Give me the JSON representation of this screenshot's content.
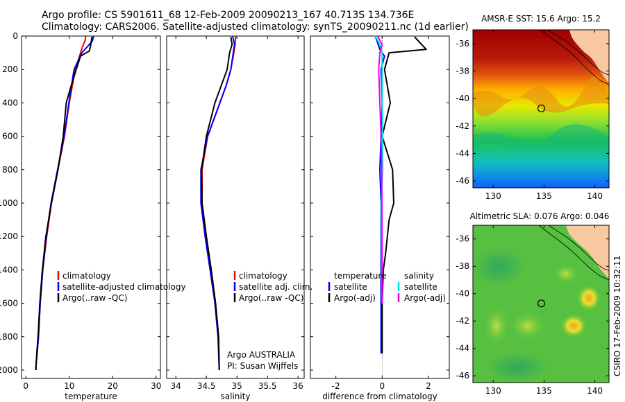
{
  "header": {
    "line1": "Argo profile: CS 5901611_68 12-Feb-2009 20090213_167 40.713S 134.736E",
    "line2": "Climatology: CARS2006. Satellite-adjusted climatology: synTS_20090211.nc (1d earlier)"
  },
  "side_label": "CSIRO 17-Feb-2009 10:32:11",
  "chart_data": [
    {
      "type": "line",
      "panel": "temperature",
      "xlabel": "temperature",
      "ylabel": "",
      "xlim": [
        -1,
        31
      ],
      "ylim": [
        2050,
        0
      ],
      "xticks": [
        0,
        10,
        20,
        30
      ],
      "yticks": [
        0,
        200,
        400,
        600,
        800,
        1000,
        1200,
        1400,
        1600,
        1800,
        2000
      ],
      "legend": [
        "climatology",
        "satellite-adjusted climatology",
        "Argo(..raw -QC)"
      ],
      "series": [
        {
          "name": "climatology",
          "color": "#ff0000",
          "x": [
            13.8,
            13.6,
            13.1,
            12.6,
            11.4,
            10.7,
            10.0,
            8.9,
            7.4,
            5.9,
            4.8,
            3.9,
            3.3,
            2.9,
            2.6,
            2.4,
            2.3
          ],
          "y": [
            0,
            30,
            60,
            100,
            200,
            300,
            400,
            600,
            800,
            1000,
            1200,
            1400,
            1600,
            1800,
            1900,
            1950,
            2000
          ]
        },
        {
          "name": "satellite-adjusted climatology",
          "color": "#0000ff",
          "x": [
            15.6,
            15.3,
            14.3,
            12.9,
            11.1,
            10.5,
            9.9,
            8.8,
            7.3,
            5.8,
            4.7,
            3.9,
            3.3,
            2.9,
            2.6,
            2.4,
            2.3
          ],
          "y": [
            0,
            30,
            60,
            100,
            200,
            300,
            400,
            600,
            800,
            1000,
            1200,
            1400,
            1600,
            1800,
            1900,
            1950,
            2000
          ]
        },
        {
          "name": "Argo(..raw -QC)",
          "color": "#000000",
          "x": [
            15.2,
            15.1,
            14.9,
            14.6,
            12.6,
            11.6,
            10.4,
            9.3,
            8.6,
            7.4,
            5.9,
            4.6,
            3.8,
            3.2,
            2.8,
            2.5,
            2.3
          ],
          "y": [
            5,
            30,
            60,
            90,
            120,
            200,
            300,
            400,
            600,
            800,
            1000,
            1200,
            1400,
            1600,
            1800,
            1900,
            2000
          ]
        }
      ]
    },
    {
      "type": "line",
      "panel": "salinity",
      "xlabel": "salinity",
      "ylabel": "",
      "xlim": [
        33.85,
        36.1
      ],
      "ylim": [
        2050,
        0
      ],
      "xticks": [
        34,
        34.5,
        35,
        35.5,
        36
      ],
      "legend": [
        "climatology",
        "satellite adj. clim.",
        "Argo(..raw -QC)"
      ],
      "annotation": [
        "Argo AUSTRALIA",
        "PI: Susan Wijffels"
      ],
      "series": [
        {
          "name": "climatology",
          "color": "#ff0000",
          "x": [
            34.98,
            34.97,
            34.95,
            34.9,
            34.82,
            34.72,
            34.52,
            34.43,
            34.43,
            34.5,
            34.58,
            34.65,
            34.7,
            34.71
          ],
          "y": [
            0,
            50,
            100,
            200,
            300,
            400,
            600,
            800,
            1000,
            1200,
            1400,
            1600,
            1800,
            2000
          ]
        },
        {
          "name": "satellite adj. clim.",
          "color": "#0000ff",
          "x": [
            34.93,
            34.96,
            34.94,
            34.9,
            34.82,
            34.72,
            34.52,
            34.41,
            34.41,
            34.48,
            34.56,
            34.64,
            34.69,
            34.71
          ],
          "y": [
            0,
            50,
            100,
            200,
            300,
            400,
            600,
            800,
            1000,
            1200,
            1400,
            1600,
            1800,
            2000
          ]
        },
        {
          "name": "Argo(..raw -QC)",
          "color": "#000000",
          "x": [
            34.9,
            34.92,
            34.88,
            34.84,
            34.74,
            34.64,
            34.5,
            34.42,
            34.43,
            34.5,
            34.58,
            34.65,
            34.7,
            34.71
          ],
          "y": [
            5,
            50,
            100,
            200,
            300,
            400,
            600,
            800,
            1000,
            1200,
            1400,
            1600,
            1800,
            2000
          ]
        }
      ]
    },
    {
      "type": "line",
      "panel": "difference",
      "xlabel": "difference from climatology",
      "ylabel": "",
      "xlim": [
        -3.1,
        2.9
      ],
      "ylim": [
        2050,
        0
      ],
      "xticks": [
        -2,
        0,
        2
      ],
      "legend": {
        "temperature": [
          "satellite",
          "Argo(-adj)"
        ],
        "salinity": [
          "satellite",
          "Argo(-adj)"
        ],
        "headers": [
          "temperature",
          "salinity"
        ]
      },
      "series": [
        {
          "name": "satellite",
          "group": "temperature",
          "color": "#0000ff",
          "x": [
            -0.3,
            -0.2,
            -0.1,
            0.1,
            -0.05,
            0.0,
            -0.05,
            -0.1,
            -0.05,
            -0.05,
            -0.05,
            -0.05,
            -0.05
          ],
          "y": [
            0,
            40,
            80,
            120,
            200,
            400,
            600,
            800,
            1000,
            1200,
            1400,
            1600,
            1900
          ]
        },
        {
          "name": "Argo(-adj)",
          "group": "temperature",
          "color": "#000000",
          "x": [
            1.4,
            1.9,
            0.3,
            0.1,
            0.35,
            0.0,
            0.45,
            0.5,
            0.3,
            0.15,
            0.05,
            0.0,
            0.0
          ],
          "y": [
            5,
            80,
            100,
            200,
            400,
            600,
            800,
            1000,
            1100,
            1300,
            1400,
            1600,
            1900
          ]
        },
        {
          "name": "satellite",
          "group": "salinity",
          "color": "#00dddd",
          "x": [
            -0.3,
            -0.1,
            0.0,
            0.0,
            0.0,
            0.02,
            0.02,
            -0.04,
            -0.02,
            0.0
          ],
          "y": [
            0,
            50,
            100,
            200,
            400,
            600,
            800,
            1000,
            1300,
            1600
          ]
        },
        {
          "name": "Argo(-adj)",
          "group": "salinity",
          "color": "#ee00ee",
          "x": [
            -0.2,
            0.0,
            -0.1,
            -0.15,
            -0.1,
            -0.05,
            -0.02,
            -0.01,
            0.0,
            0.0
          ],
          "y": [
            0,
            50,
            100,
            200,
            400,
            600,
            800,
            1000,
            1300,
            1600
          ]
        }
      ]
    },
    {
      "type": "heatmap",
      "panel": "sst-map",
      "title": "AMSR-E SST: 15.6 Argo: 15.2",
      "xlim": [
        128,
        141.4
      ],
      "ylim": [
        -46.5,
        -35
      ],
      "xticks": [
        130,
        135,
        140
      ],
      "yticks": [
        -36,
        -38,
        -40,
        -42,
        -44,
        -46
      ],
      "marker": {
        "lon": 134.736,
        "lat": -40.713
      }
    },
    {
      "type": "heatmap",
      "panel": "sla-map",
      "title": "Altimetric SLA: 0.076 Argo: 0.046",
      "xlim": [
        128,
        141.4
      ],
      "ylim": [
        -46.5,
        -35
      ],
      "xticks": [
        130,
        135,
        140
      ],
      "yticks": [
        -36,
        -38,
        -40,
        -42,
        -44,
        -46
      ],
      "marker": {
        "lon": 134.736,
        "lat": -40.713
      }
    }
  ]
}
